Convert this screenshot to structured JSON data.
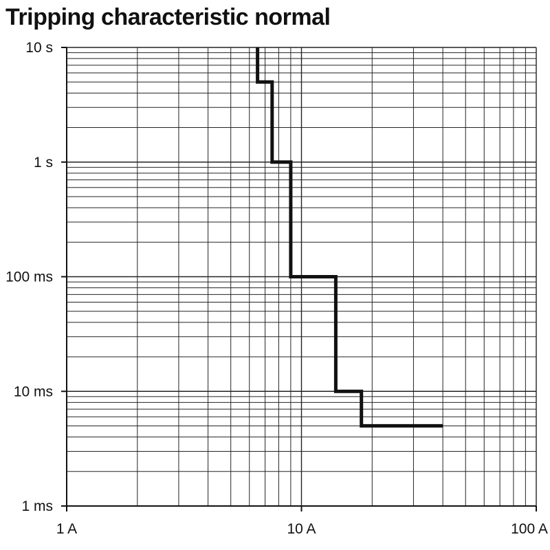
{
  "chart_data": {
    "type": "line",
    "title": "Tripping characteristic normal",
    "x_scale": "log",
    "y_scale": "log",
    "xlim": [
      1,
      100
    ],
    "ylim": [
      0.001,
      10
    ],
    "grid": true,
    "x_ticks": [
      {
        "value": 1,
        "label": "1 A"
      },
      {
        "value": 10,
        "label": "10 A"
      },
      {
        "value": 100,
        "label": "100 A"
      }
    ],
    "y_ticks": [
      {
        "value": 10,
        "label": "10 s"
      },
      {
        "value": 1,
        "label": "1 s"
      },
      {
        "value": 0.1,
        "label": "100 ms"
      },
      {
        "value": 0.01,
        "label": "10 ms"
      },
      {
        "value": 0.001,
        "label": "1 ms"
      }
    ],
    "series": [
      {
        "x_unit": "A",
        "y_unit": "s",
        "points": [
          [
            6.5,
            10
          ],
          [
            6.5,
            5
          ],
          [
            7.5,
            5
          ],
          [
            7.5,
            1
          ],
          [
            9,
            1
          ],
          [
            9,
            0.1
          ],
          [
            14,
            0.1
          ],
          [
            14,
            0.01
          ],
          [
            18,
            0.01
          ],
          [
            18,
            0.005
          ],
          [
            40,
            0.005
          ]
        ]
      }
    ],
    "colors": {
      "curve": "#111111",
      "grid": "#222222",
      "background": "#ffffff"
    }
  }
}
